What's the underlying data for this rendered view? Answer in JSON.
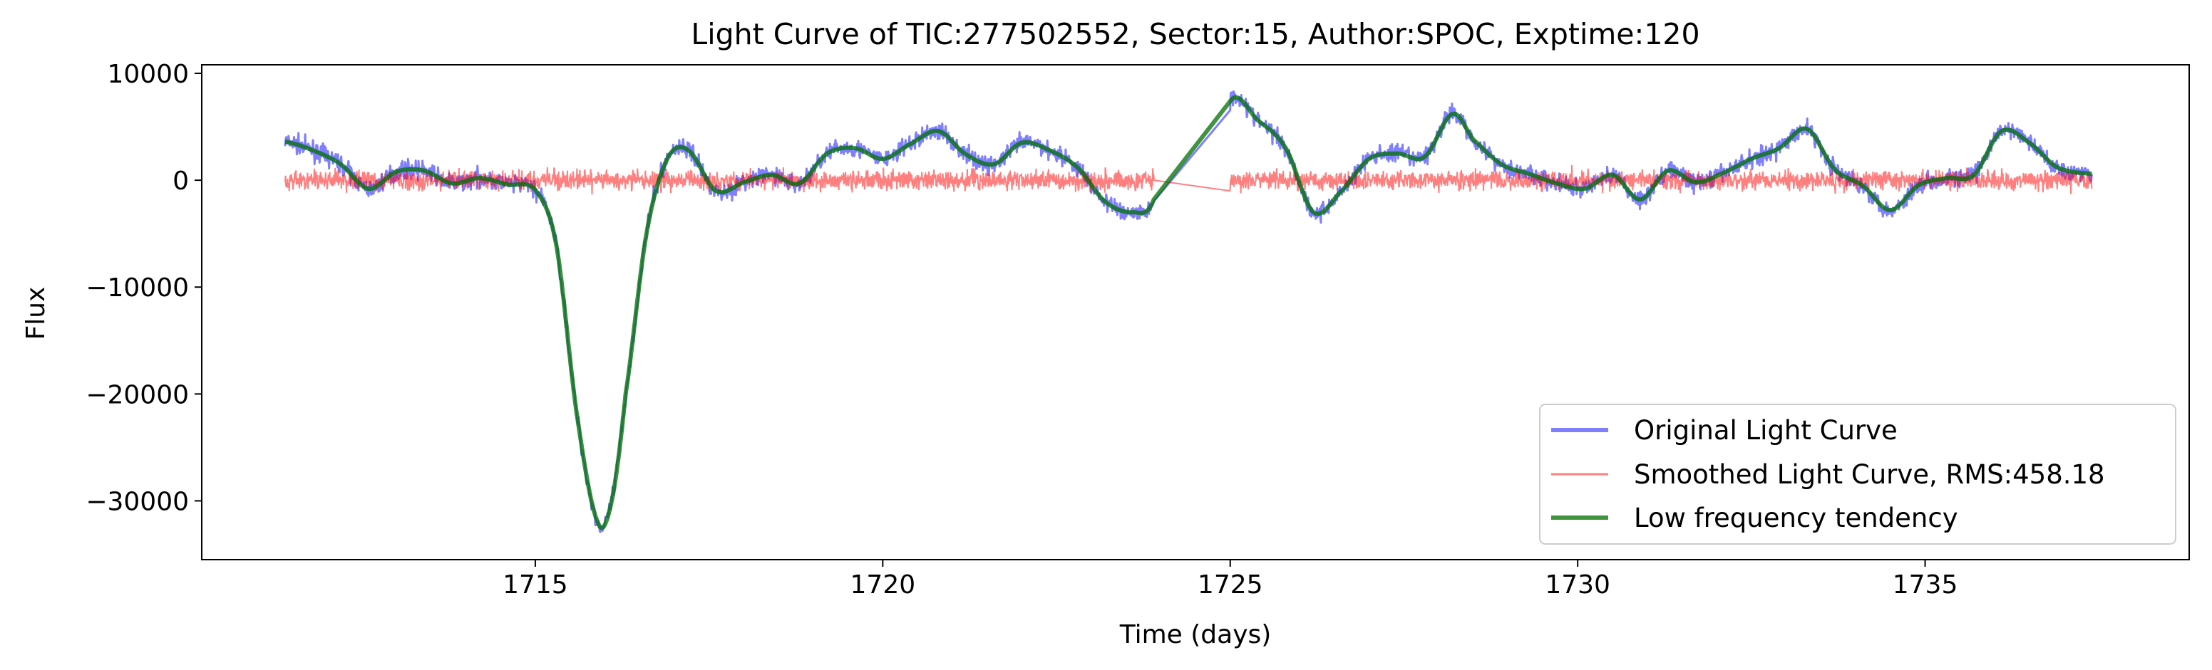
{
  "chart_data": {
    "type": "line",
    "title": "Light Curve of TIC:277502552, Sector:15, Author:SPOC, Exptime:120",
    "xlabel": "Time (days)",
    "ylabel": "Flux",
    "xlim": [
      1710.2,
      1738.8
    ],
    "ylim": [
      -35500,
      10800
    ],
    "xticks": [
      1715,
      1720,
      1725,
      1730,
      1735
    ],
    "xtick_labels": [
      "1715",
      "1720",
      "1725",
      "1730",
      "1735"
    ],
    "yticks": [
      10000,
      0,
      -10000,
      -20000,
      -30000
    ],
    "ytick_labels": [
      "10000",
      "0",
      "−10000",
      "−20000",
      "−30000"
    ],
    "grid": false,
    "legend_position": "lower-right",
    "series": [
      {
        "name": "Original Light Curve",
        "color": "#0000ff",
        "x": [
          1711.4,
          1711.8,
          1712.2,
          1712.6,
          1713.0,
          1713.4,
          1713.8,
          1714.2,
          1714.6,
          1715.0,
          1715.3,
          1715.6,
          1715.9,
          1716.1,
          1716.3,
          1716.6,
          1716.9,
          1717.2,
          1717.6,
          1718.0,
          1718.4,
          1718.8,
          1719.2,
          1719.6,
          1720.0,
          1720.4,
          1720.8,
          1721.2,
          1721.6,
          1722.0,
          1722.4,
          1722.8,
          1723.2,
          1723.6,
          1723.9,
          1725.0,
          1725.4,
          1725.8,
          1726.2,
          1726.6,
          1727.0,
          1727.4,
          1727.8,
          1728.2,
          1728.5,
          1728.9,
          1729.3,
          1729.7,
          1730.1,
          1730.5,
          1730.9,
          1731.3,
          1731.7,
          1732.1,
          1732.5,
          1732.9,
          1733.3,
          1733.7,
          1734.1,
          1734.5,
          1734.9,
          1735.3,
          1735.7,
          1736.1,
          1736.5,
          1736.9,
          1737.4
        ],
        "y": [
          3600,
          2800,
          1500,
          -800,
          800,
          900,
          -300,
          200,
          -400,
          -900,
          -6000,
          -22000,
          -32000,
          -30000,
          -20000,
          -5000,
          2000,
          2800,
          -1000,
          -200,
          500,
          -300,
          2500,
          3000,
          2000,
          3400,
          4600,
          2400,
          1500,
          3500,
          2800,
          1200,
          -2000,
          -3000,
          -1800,
          7400,
          5600,
          3000,
          -3000,
          -1000,
          2000,
          2500,
          2200,
          6200,
          3800,
          1500,
          600,
          -300,
          -800,
          500,
          -1800,
          900,
          -200,
          700,
          2000,
          3000,
          4800,
          1000,
          -500,
          -2800,
          -500,
          200,
          500,
          4600,
          3500,
          1200,
          600
        ]
      },
      {
        "name": "Smoothed Light Curve, RMS:458.18",
        "color": "#ff0000",
        "x": [
          1711.4,
          1715.5,
          1716.5,
          1723.9,
          1725.0,
          1737.4
        ],
        "y": [
          0,
          0,
          0,
          0,
          -1000,
          0
        ],
        "noise_rms": 458.18
      },
      {
        "name": "Low frequency tendency",
        "color": "#007000",
        "x": [
          1711.4,
          1711.8,
          1712.2,
          1712.6,
          1713.0,
          1713.4,
          1713.8,
          1714.2,
          1714.6,
          1715.0,
          1715.3,
          1715.6,
          1715.9,
          1716.1,
          1716.3,
          1716.6,
          1716.9,
          1717.2,
          1717.6,
          1718.0,
          1718.4,
          1718.8,
          1719.2,
          1719.6,
          1720.0,
          1720.4,
          1720.8,
          1721.2,
          1721.6,
          1722.0,
          1722.4,
          1722.8,
          1723.2,
          1723.6,
          1723.9,
          1725.0,
          1725.4,
          1725.8,
          1726.2,
          1726.6,
          1727.0,
          1727.4,
          1727.8,
          1728.2,
          1728.5,
          1728.9,
          1729.3,
          1729.7,
          1730.1,
          1730.5,
          1730.9,
          1731.3,
          1731.7,
          1732.1,
          1732.5,
          1732.9,
          1733.3,
          1733.7,
          1734.1,
          1734.5,
          1734.9,
          1735.3,
          1735.7,
          1736.1,
          1736.5,
          1736.9,
          1737.4
        ],
        "y": [
          3600,
          2800,
          1500,
          -800,
          800,
          900,
          -300,
          200,
          -400,
          -900,
          -6000,
          -22000,
          -32000,
          -30000,
          -20000,
          -5000,
          2000,
          2800,
          -1000,
          -200,
          500,
          -300,
          2500,
          3000,
          2000,
          3400,
          4600,
          2400,
          1500,
          3500,
          2800,
          1200,
          -2000,
          -3000,
          -1800,
          7400,
          5600,
          3000,
          -3000,
          -1000,
          2000,
          2500,
          2200,
          6200,
          3800,
          1500,
          600,
          -300,
          -800,
          500,
          -1800,
          900,
          -200,
          700,
          2000,
          3000,
          4800,
          1000,
          -500,
          -2800,
          -500,
          200,
          500,
          4600,
          3500,
          1200,
          600
        ]
      }
    ]
  }
}
